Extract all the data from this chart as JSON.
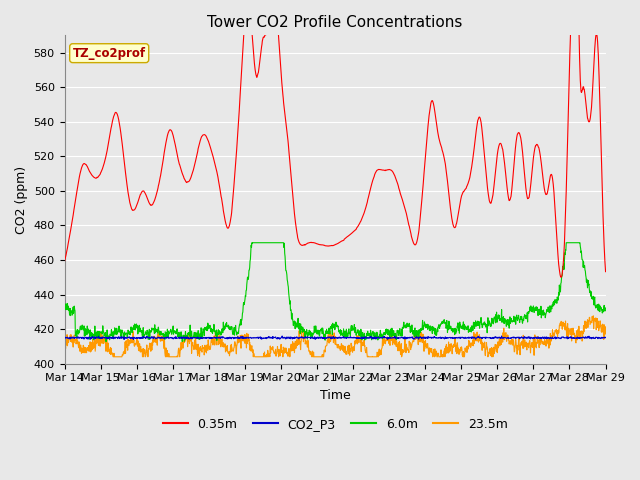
{
  "title": "Tower CO2 Profile Concentrations",
  "xlabel": "Time",
  "ylabel": "CO2 (ppm)",
  "ylim": [
    400,
    590
  ],
  "yticks": [
    400,
    420,
    440,
    460,
    480,
    500,
    520,
    540,
    560,
    580
  ],
  "plot_bg_color": "#e8e8e8",
  "grid_color": "#ffffff",
  "annotation_text": "TZ_co2prof",
  "annotation_bg": "#ffffcc",
  "annotation_border": "#ccaa00",
  "annotation_text_color": "#aa0000",
  "colors": {
    "0.35m": "#ff0000",
    "CO2_P3": "#0000cc",
    "6.0m": "#00cc00",
    "23.5m": "#ff9900"
  },
  "xtick_labels": [
    "Mar 14",
    "Mar 15",
    "Mar 16",
    "Mar 17",
    "Mar 18",
    "Mar 19",
    "Mar 20",
    "Mar 21",
    "Mar 22",
    "Mar 23",
    "Mar 24",
    "Mar 25",
    "Mar 26",
    "Mar 27",
    "Mar 28",
    "Mar 29"
  ]
}
